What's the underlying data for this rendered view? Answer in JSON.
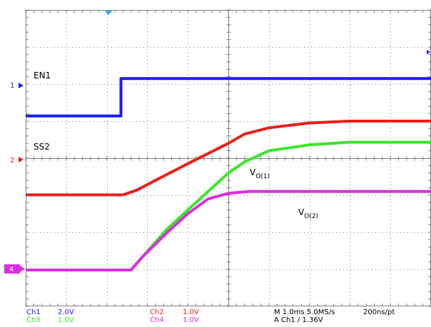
{
  "colors": {
    "ch1": "#1a1aff",
    "ch2": "#e8211a",
    "ch3": "#39e62b",
    "ch4": "#df2de0",
    "grid": "#7f7f7f",
    "trigger": "#3da5d9",
    "status_blue": "#1a1aff",
    "background": "#ffffff"
  },
  "markers": {
    "ch1": "1",
    "ch2": "2",
    "ch4": "4"
  },
  "trace_labels": {
    "en1": "EN1",
    "ss2": "SS2",
    "vo1_main": "V",
    "vo1_sub": "O(1)",
    "vo2_main": "V",
    "vo2_sub": "O(2)"
  },
  "status_bar": {
    "ch1_name": "Ch1",
    "ch1_scale": "2.0V",
    "ch2_name": "Ch2",
    "ch2_scale": "1.0V",
    "ch3_name": "Ch3",
    "ch3_scale": "1.0V",
    "ch4_name": "Ch4",
    "ch4_scale": "1.0V",
    "timebase": "M 1.0ms 5.0MS/s",
    "resolution": "200ns/pt",
    "trigger": "A  Ch1  ∕  1.36V"
  },
  "chart_data": {
    "type": "line",
    "grid": true,
    "x_divisions": 10,
    "y_divisions": 8,
    "x_unit": "div (1.0ms/div)",
    "series": [
      {
        "name": "EN1",
        "channel": "Ch1",
        "color": "#1a1aff",
        "points": [
          [
            0,
            5.14
          ],
          [
            2.35,
            5.14
          ],
          [
            2.35,
            6.15
          ],
          [
            10,
            6.15
          ]
        ]
      },
      {
        "name": "SS2",
        "channel": "Ch2",
        "color": "#e8211a",
        "points": [
          [
            0,
            3.01
          ],
          [
            2.4,
            3.01
          ],
          [
            2.75,
            3.14
          ],
          [
            3.2,
            3.4
          ],
          [
            4.0,
            3.85
          ],
          [
            5.0,
            4.4
          ],
          [
            5.4,
            4.65
          ],
          [
            6.0,
            4.82
          ],
          [
            7.0,
            4.95
          ],
          [
            8.0,
            5.0
          ],
          [
            10,
            5.0
          ]
        ]
      },
      {
        "name": "V O(1)",
        "channel": "Ch3",
        "color": "#39e62b",
        "points": [
          [
            0,
            0.98
          ],
          [
            2.6,
            0.98
          ],
          [
            2.85,
            1.3
          ],
          [
            3.5,
            2.1
          ],
          [
            4.5,
            3.1
          ],
          [
            5.0,
            3.6
          ],
          [
            5.4,
            3.9
          ],
          [
            6.0,
            4.2
          ],
          [
            7.0,
            4.36
          ],
          [
            8.0,
            4.43
          ],
          [
            10,
            4.43
          ]
        ]
      },
      {
        "name": "V O(2)",
        "channel": "Ch4",
        "color": "#df2de0",
        "points": [
          [
            0,
            0.98
          ],
          [
            2.6,
            0.98
          ],
          [
            2.85,
            1.3
          ],
          [
            3.5,
            2.0
          ],
          [
            4.0,
            2.5
          ],
          [
            4.5,
            2.9
          ],
          [
            5.0,
            3.05
          ],
          [
            5.5,
            3.1
          ],
          [
            10,
            3.1
          ]
        ]
      }
    ]
  }
}
